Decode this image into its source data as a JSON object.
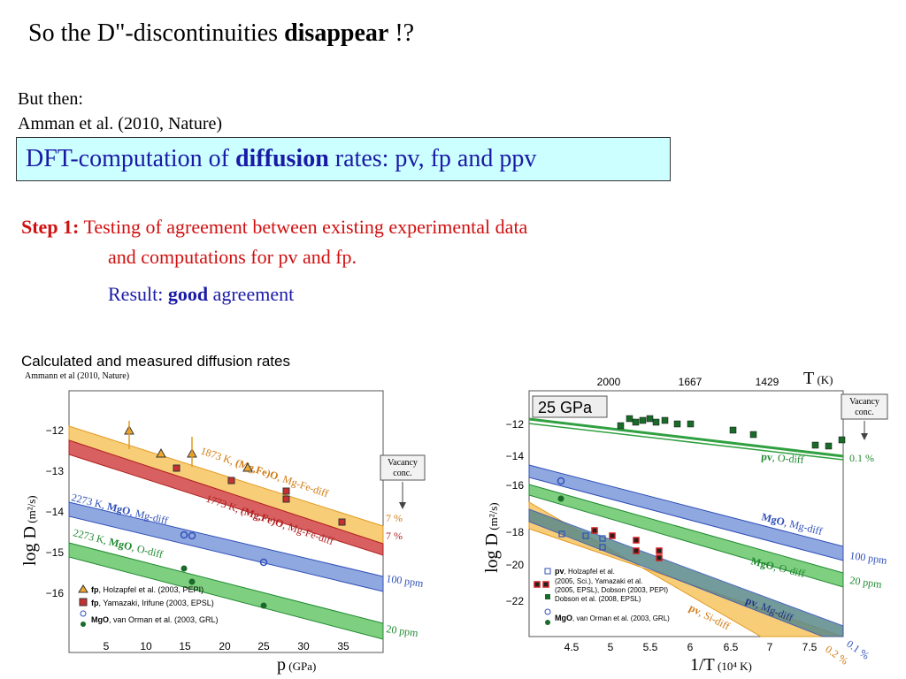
{
  "slide": {
    "title_pre": "So the D\"-discontinuities ",
    "title_bold": "disappear",
    "title_post": " !?",
    "but_then": "But then:",
    "reference": "Amman et al. (2010, Nature)",
    "dft_pre": "DFT-computation of ",
    "dft_bold": "diffusion",
    "dft_post": " rates:  pv, fp and ppv",
    "step_label": "Step 1:",
    "step_line1": " Testing of agreement between existing experimental data",
    "step_line2": "and computations for pv and fp.",
    "result_pre": "Result: ",
    "result_bold": "good",
    "result_post": " agreement"
  },
  "colors": {
    "orange": "#f0a830",
    "red": "#c83030",
    "blue": "#3050b8",
    "green": "#30a040",
    "dkgreen": "#1a6b2a"
  },
  "left_chart": {
    "heading": "Calculated and measured diffusion rates",
    "subheading": "Ammann et al (2010, Nature)",
    "ylabel_main": "log D",
    "ylabel_unit": " (m²/s)",
    "xlabel_main": "p",
    "xlabel_unit": " (GPa)",
    "xticks": [
      "5",
      "10",
      "15",
      "20",
      "25",
      "30",
      "35"
    ],
    "yticks": [
      "−12",
      "−13",
      "−14",
      "−15",
      "−16"
    ],
    "vacancy": [
      "Vacancy",
      "conc."
    ],
    "bands": [
      {
        "label_pre": "1873 K, ",
        "label_bold": "(Mg,Fe)O",
        "label_post": ", Mg-Fe-diff",
        "conc": "7 %"
      },
      {
        "label_pre": "1773 K, ",
        "label_bold": "(Mg,Fe)O",
        "label_post": ", Mg-Fe-diff",
        "conc": "7 %"
      },
      {
        "label_pre": "2273 K, ",
        "label_bold": "MgO",
        "label_post": ", Mg-diff",
        "conc": "100 ppm"
      },
      {
        "label_pre": "2273 K, ",
        "label_bold": "MgO",
        "label_post": ", O-diff",
        "conc": "20 ppm"
      }
    ],
    "legend": [
      {
        "bold": "fp",
        "text": ", Holzapfel et al. (2003, PEPI)"
      },
      {
        "bold": "fp",
        "text": ", Yamazaki, Irifune (2003, EPSL)"
      },
      {
        "bold": "MgO",
        "text": ", van Orman et al. (2003, GRL)"
      }
    ]
  },
  "right_chart": {
    "pressure": "25 GPa",
    "ylabel_main": "log D",
    "ylabel_unit": " (m²/s)",
    "xlabel_main": "1/T",
    "xlabel_unit": " (10⁴ K)",
    "top_label_main": "T",
    "top_label_unit": " (K)",
    "top_ticks": [
      "2000",
      "1667",
      "1429"
    ],
    "xticks": [
      "4.5",
      "5",
      "5.5",
      "6",
      "6.5",
      "7",
      "7.5"
    ],
    "yticks": [
      "−12",
      "−14",
      "−16",
      "−18",
      "−20",
      "−22"
    ],
    "vacancy": [
      "Vacancy",
      "conc."
    ],
    "bands": [
      {
        "label_bold": "pv",
        "label_post": ", O-diff",
        "conc": "0.1 %"
      },
      {
        "label_bold": "MgO",
        "label_post": ", Mg-diff",
        "conc": "100 ppm"
      },
      {
        "label_bold": "MgO",
        "label_post": ", O-diff",
        "conc": "20 ppm"
      },
      {
        "label_bold": "pv",
        "label_post": ", Mg-diff",
        "conc": "0.1 %"
      },
      {
        "label_bold": "pv",
        "label_post": ", Si-diff",
        "conc": "0.2 %"
      }
    ],
    "legend": [
      {
        "bold": "pv",
        "text": ", Holzapfel et al."
      },
      {
        "bold": "",
        "text": "(2005, Sci.), Yamazaki et al."
      },
      {
        "bold": "",
        "text": "(2005, EPSL), Dobson (2003, PEPI)"
      },
      {
        "bold": "",
        "text": "Dobson et al. (2008, EPSL)"
      },
      {
        "bold": "MgO",
        "text": ", van Orman et al. (2003, GRL)"
      }
    ]
  }
}
